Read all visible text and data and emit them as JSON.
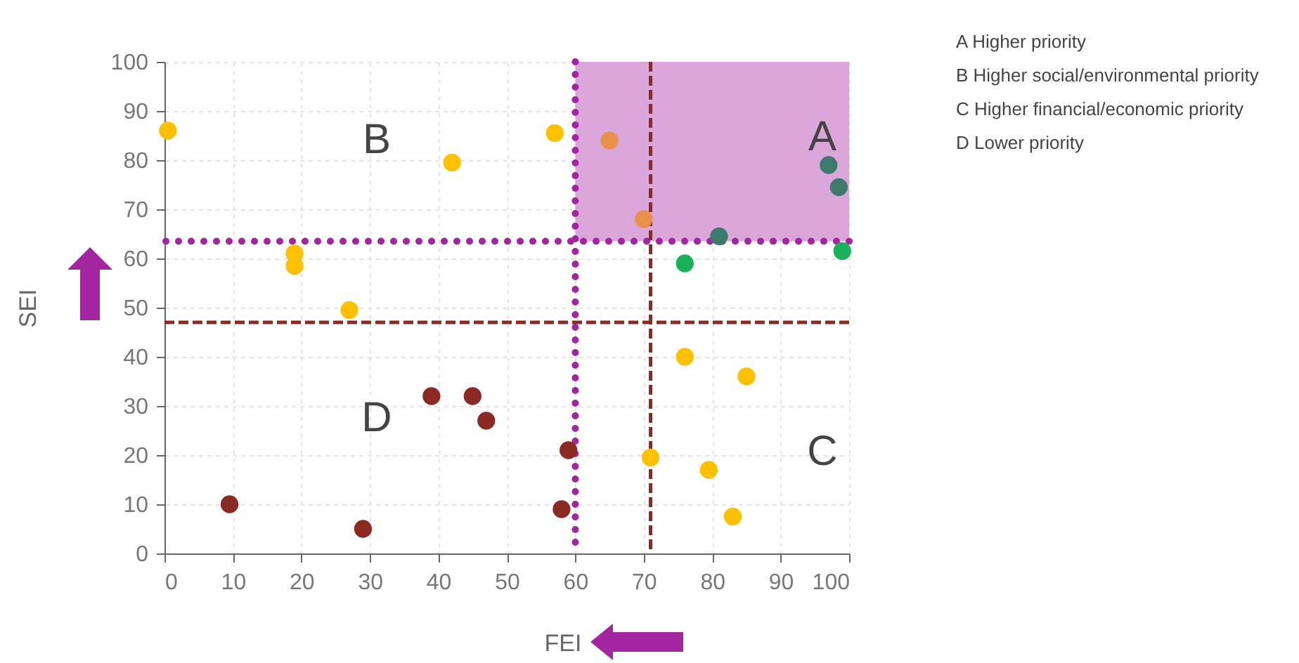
{
  "chart_data": {
    "type": "scatter",
    "xlabel": "FEI",
    "ylabel": "SEI",
    "xlim": [
      0,
      100
    ],
    "ylim": [
      0,
      100
    ],
    "xticks": [
      0,
      10,
      20,
      30,
      40,
      50,
      60,
      70,
      80,
      90,
      100
    ],
    "yticks": [
      0,
      10,
      20,
      30,
      40,
      50,
      60,
      70,
      80,
      90,
      100
    ],
    "grid": true,
    "marker": "circle",
    "series": [
      {
        "color": "#ffc000",
        "x": [
          0.5,
          19,
          19,
          27,
          42,
          57,
          76,
          85,
          71,
          79.5,
          83
        ],
        "values": [
          86,
          61,
          58.5,
          49.5,
          79.5,
          85.5,
          40,
          36,
          19.5,
          17,
          7.5
        ]
      },
      {
        "color": "#e8914a",
        "x": [
          65,
          70
        ],
        "values": [
          84,
          68
        ]
      },
      {
        "color": "#8b2a22",
        "x": [
          9.5,
          29,
          39,
          45,
          47,
          59,
          58
        ],
        "values": [
          10,
          5,
          32,
          32,
          27,
          21,
          9
        ]
      },
      {
        "color": "#3d7a6c",
        "x": [
          97,
          98.5,
          81
        ],
        "values": [
          79,
          74.5,
          64.5
        ]
      },
      {
        "color": "#1bb05a",
        "x": [
          76,
          99
        ],
        "values": [
          59,
          61.5
        ]
      }
    ],
    "ref_lines": [
      {
        "axis": "x",
        "value": 60,
        "color": "#a3259f",
        "line_style": "dotted"
      },
      {
        "axis": "y",
        "value": 63.5,
        "color": "#a3259f",
        "line_style": "dotted"
      },
      {
        "axis": "x",
        "value": 71,
        "color": "#8b2a22",
        "line_style": "dashed"
      },
      {
        "axis": "y",
        "value": 47,
        "color": "#8b2a22",
        "line_style": "dashed"
      }
    ],
    "bands": [
      {
        "axis": "x",
        "from": 60,
        "to": 100,
        "color": "#dba6da"
      }
    ],
    "annotations": [
      "A",
      "B",
      "C",
      "D",
      "A  Higher priority",
      "B  Higher social/environmental priority",
      "C  Higher financial/economic priority",
      "D  Lower priority"
    ]
  }
}
